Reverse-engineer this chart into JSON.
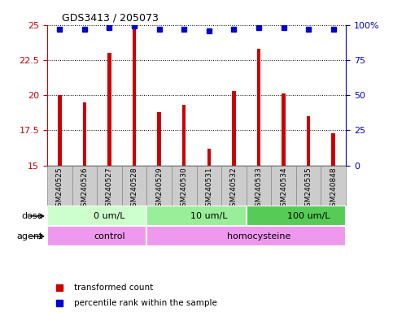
{
  "title": "GDS3413 / 205073",
  "samples": [
    "GSM240525",
    "GSM240526",
    "GSM240527",
    "GSM240528",
    "GSM240529",
    "GSM240530",
    "GSM240531",
    "GSM240532",
    "GSM240533",
    "GSM240534",
    "GSM240535",
    "GSM240848"
  ],
  "bar_values": [
    20.0,
    19.5,
    23.0,
    24.7,
    18.8,
    19.3,
    16.2,
    20.3,
    23.3,
    20.1,
    18.5,
    17.3
  ],
  "percentile_values": [
    97,
    97,
    98,
    99,
    97,
    97,
    96,
    97,
    98,
    98,
    97,
    97
  ],
  "bar_color": "#cc0000",
  "dot_color": "#0000cc",
  "ylim_left": [
    15,
    25
  ],
  "ylim_right": [
    0,
    100
  ],
  "yticks_left": [
    15,
    17.5,
    20,
    22.5,
    25
  ],
  "yticks_right": [
    0,
    25,
    50,
    75,
    100
  ],
  "ytick_labels_left": [
    "15",
    "17.5",
    "20",
    "22.5",
    "25"
  ],
  "ytick_labels_right": [
    "0",
    "25",
    "50",
    "75",
    "100%"
  ],
  "dose_groups": [
    {
      "label": "0 um/L",
      "start": 0,
      "end": 4,
      "color": "#ccffcc"
    },
    {
      "label": "10 um/L",
      "start": 4,
      "end": 8,
      "color": "#99ee99"
    },
    {
      "label": "100 um/L",
      "start": 8,
      "end": 12,
      "color": "#55cc55"
    }
  ],
  "agent_groups": [
    {
      "label": "control",
      "start": 0,
      "end": 4,
      "color": "#ee99ee"
    },
    {
      "label": "homocysteine",
      "start": 4,
      "end": 12,
      "color": "#ee99ee"
    }
  ],
  "dose_label": "dose",
  "agent_label": "agent",
  "legend_items": [
    {
      "color": "#cc0000",
      "label": "transformed count"
    },
    {
      "color": "#0000cc",
      "label": "percentile rank within the sample"
    }
  ],
  "bar_width": 0.15,
  "cell_bg_color": "#cccccc",
  "cell_border_color": "#888888"
}
